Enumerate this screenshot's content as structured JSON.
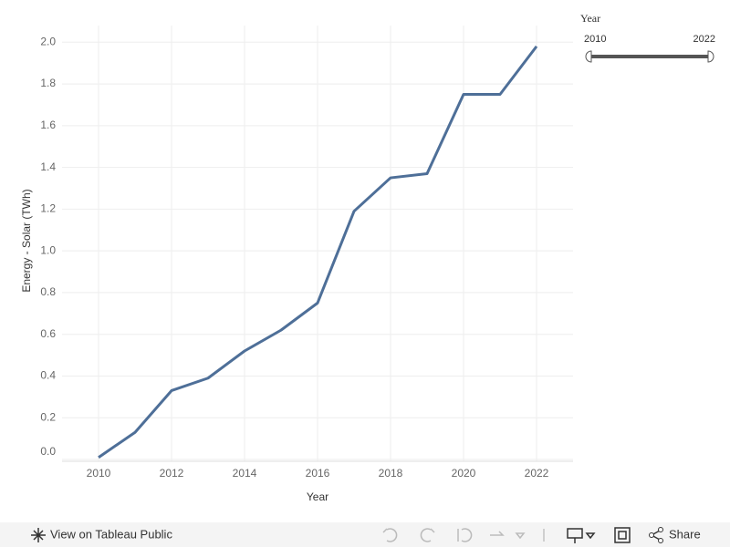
{
  "chart_data": {
    "type": "line",
    "x_label": "Year",
    "y_label": "Energy - Solar (TWh)",
    "x": [
      2010,
      2011,
      2012,
      2013,
      2014,
      2015,
      2016,
      2017,
      2018,
      2019,
      2020,
      2021,
      2022
    ],
    "values": [
      0.01,
      0.13,
      0.33,
      0.39,
      0.52,
      0.62,
      0.75,
      1.19,
      1.35,
      1.37,
      1.75,
      1.75,
      1.98
    ],
    "color": "#4e6f98",
    "xlim": [
      2009,
      2023
    ],
    "xticks": [
      2010,
      2012,
      2014,
      2016,
      2018,
      2020,
      2022
    ],
    "ylim": [
      0,
      2.08
    ],
    "yticks": [
      {
        "value": 0,
        "label": "0.0"
      },
      0.2,
      0.4,
      0.6,
      0.8,
      {
        "value": 1,
        "label": "1.0"
      },
      1.2,
      1.4,
      1.6,
      1.8,
      {
        "value": 2,
        "label": "2.0"
      }
    ],
    "grid": true
  },
  "filter": {
    "title": "Year",
    "min": "2010",
    "max": "2022"
  },
  "toolbar": {
    "view": "View on Tableau Public",
    "share": "Share"
  }
}
